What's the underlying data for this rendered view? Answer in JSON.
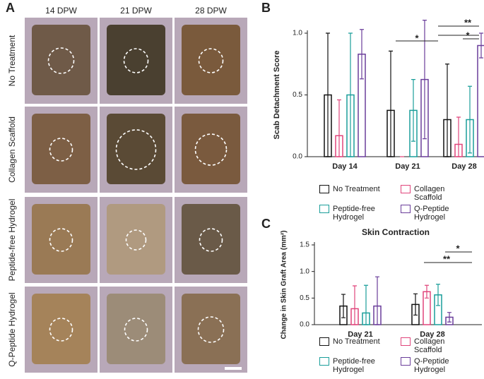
{
  "panel_a": {
    "letter": "A",
    "columns": [
      "14 DPW",
      "21 DPW",
      "28 DPW"
    ],
    "rows": [
      "No Treatment",
      "Collagen Scaffold",
      "Peptide-free Hydrogel",
      "Q-Peptide Hydrogel"
    ]
  },
  "chart_data": [
    {
      "type": "bar",
      "letter": "B",
      "y_label": "Scab Detachment Score",
      "categories": [
        "Day 14",
        "Day 21",
        "Day 28"
      ],
      "series": [
        {
          "name": "No Treatment",
          "color": "#111111",
          "values": [
            0.5,
            0.375,
            0.3
          ],
          "errors": [
            0.5,
            0.48,
            0.45
          ]
        },
        {
          "name": "Collagen Scaffold",
          "color": "#e0457b",
          "values": [
            0.17,
            0,
            0.1
          ],
          "errors": [
            0.29,
            0,
            0.22
          ]
        },
        {
          "name": "Peptide-free Hydrogel",
          "color": "#1a9e9a",
          "values": [
            0.5,
            0.375,
            0.3
          ],
          "errors": [
            0.5,
            0.25,
            0.27
          ]
        },
        {
          "name": "Q-Peptide Hydrogel",
          "color": "#6a3d9a",
          "values": [
            0.83,
            0.625,
            0.9
          ],
          "errors": [
            0.2,
            0.48,
            0.1
          ]
        }
      ],
      "ylim": [
        0,
        1
      ],
      "yticks": [
        {
          "value": 0,
          "label": "0.0"
        },
        {
          "value": 0.5,
          "label": "0.5"
        },
        {
          "value": 1,
          "label": "1.0"
        }
      ],
      "annotations": [
        "*",
        "**",
        "*"
      ]
    },
    {
      "type": "bar",
      "letter": "C",
      "title": "Skin Contraction",
      "y_label": "Change in Skin Graft Area (mm²)",
      "categories": [
        "Day 21",
        "Day 28"
      ],
      "series": [
        {
          "name": "No Treatment",
          "color": "#111111",
          "values": [
            0.35,
            0.38
          ],
          "errors": [
            0.22,
            0.2
          ]
        },
        {
          "name": "Collagen Scaffold",
          "color": "#e0457b",
          "values": [
            0.3,
            0.62
          ],
          "errors": [
            0.43,
            0.12
          ]
        },
        {
          "name": "Peptide-free Hydrogel",
          "color": "#1a9e9a",
          "values": [
            0.22,
            0.56
          ],
          "errors": [
            0.52,
            0.2
          ]
        },
        {
          "name": "Q-Peptide Hydrogel",
          "color": "#6a3d9a",
          "values": [
            0.35,
            0.14
          ],
          "errors": [
            0.55,
            0.09
          ]
        }
      ],
      "ylim": [
        0,
        1.5
      ],
      "yticks": [
        {
          "value": 0,
          "label": "0.0"
        },
        {
          "value": 0.5,
          "label": "0.5"
        },
        {
          "value": 1,
          "label": "1.0"
        },
        {
          "value": 1.5,
          "label": "1.5"
        }
      ],
      "annotations": [
        "**",
        "*"
      ]
    }
  ]
}
